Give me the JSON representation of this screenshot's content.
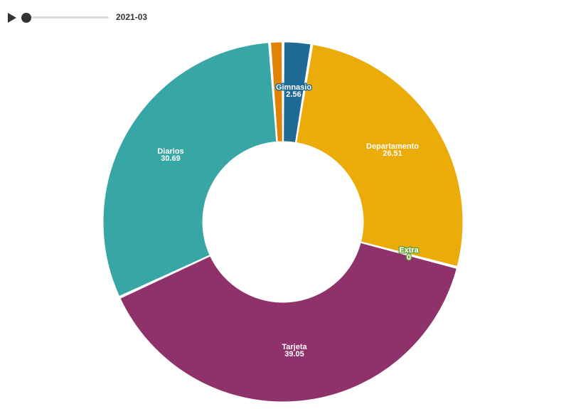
{
  "player": {
    "frame_label": "2021-03",
    "progress": 0
  },
  "chart_data": {
    "type": "pie",
    "donut": true,
    "period": "2021-03",
    "slices": [
      {
        "label": "Gimnasio",
        "value": 2.56,
        "color": "#1f6b96",
        "value_text": "2.56"
      },
      {
        "label": "Departamento",
        "value": 26.51,
        "color": "#ebac0a",
        "value_text": "26.51"
      },
      {
        "label": "Extra",
        "value": 0,
        "color": "#6da63a",
        "value_text": "0"
      },
      {
        "label": "Tarjeta",
        "value": 39.05,
        "color": "#8f326b",
        "value_text": "39.05"
      },
      {
        "label": "Diarios",
        "value": 30.69,
        "color": "#38a6a4",
        "value_text": "30.69"
      },
      {
        "label": "",
        "value": 1.19,
        "color": "#e08306",
        "value_text": ""
      }
    ]
  }
}
